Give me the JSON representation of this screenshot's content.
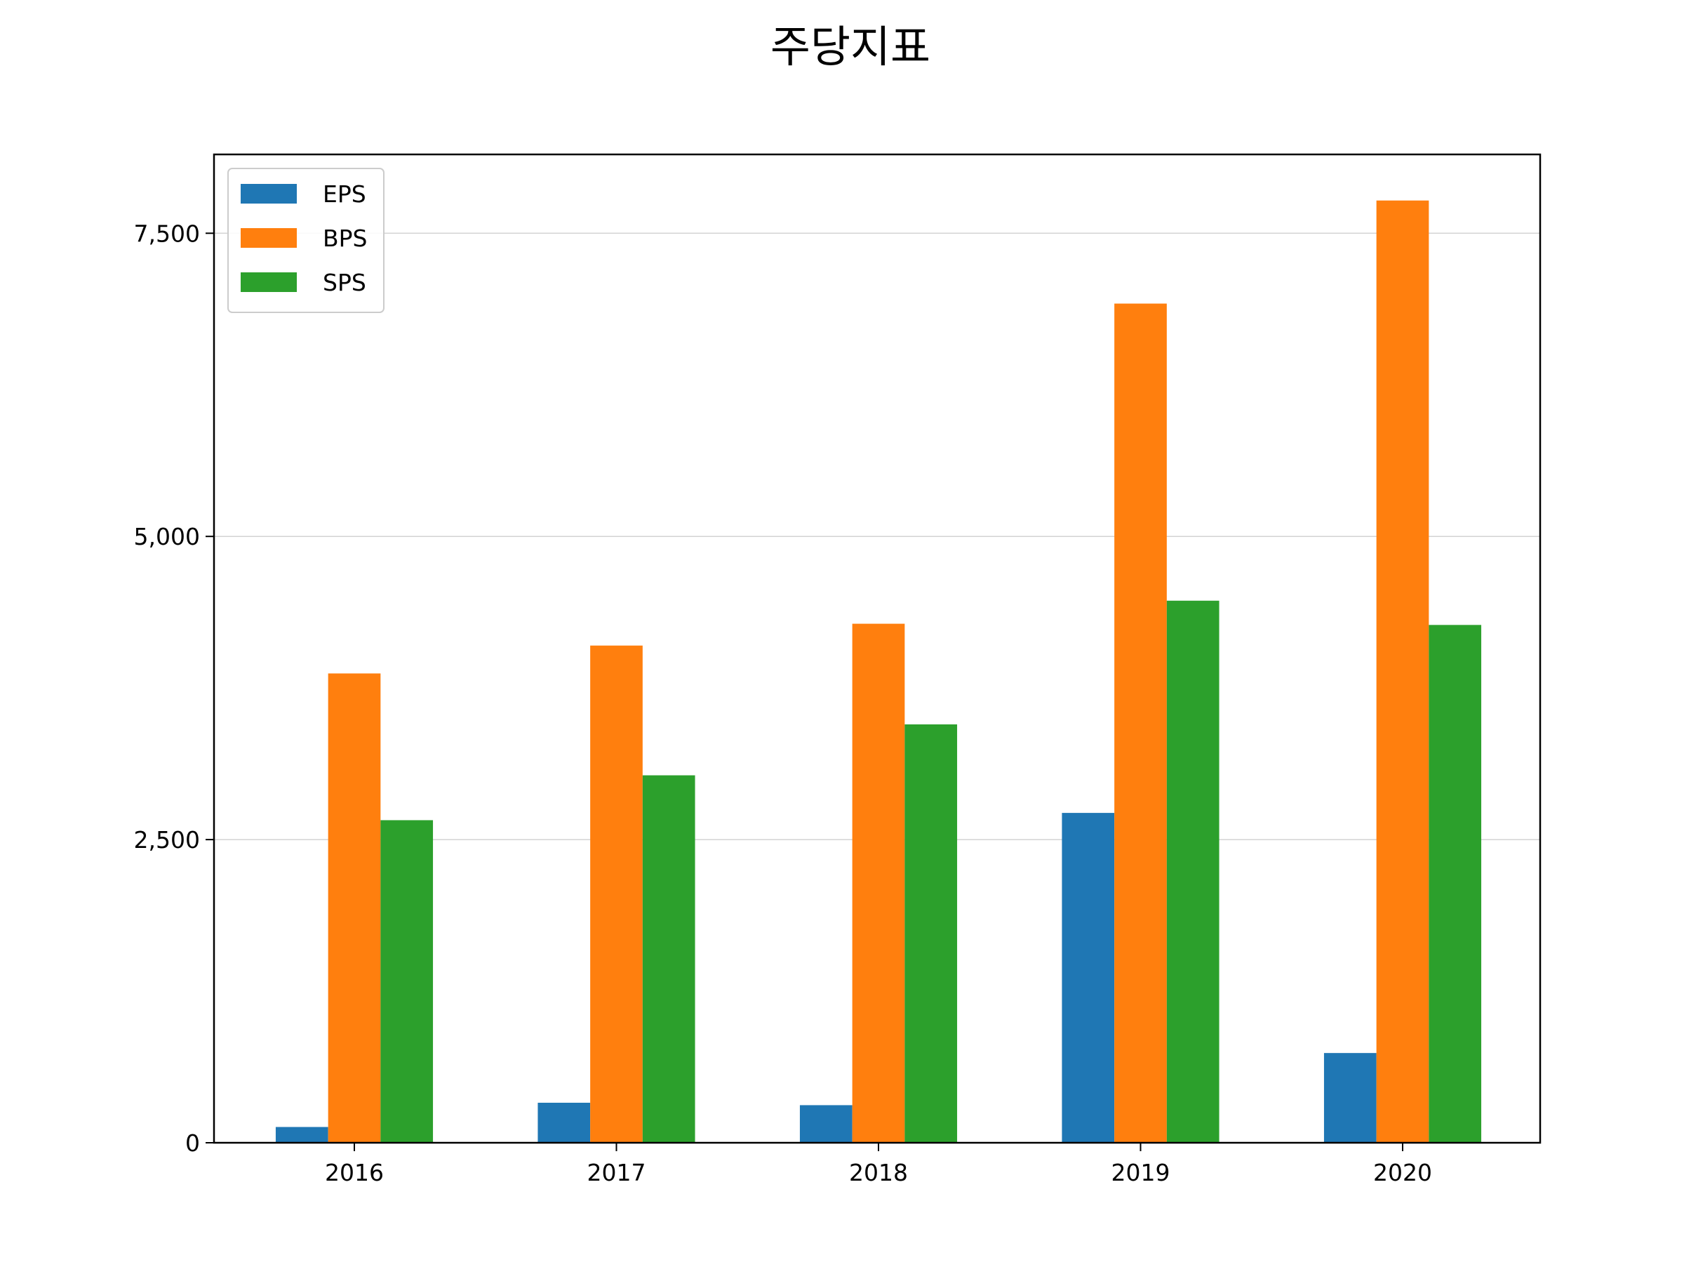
{
  "chart_data": {
    "type": "bar",
    "title": "주당지표",
    "categories": [
      "2016",
      "2017",
      "2018",
      "2019",
      "2020"
    ],
    "series": [
      {
        "name": "EPS",
        "color": "#1f77b4",
        "values": [
          130,
          330,
          310,
          2720,
          740
        ]
      },
      {
        "name": "BPS",
        "color": "#ff7f0e",
        "values": [
          3870,
          4100,
          4280,
          6920,
          7770
        ]
      },
      {
        "name": "SPS",
        "color": "#2ca02c",
        "values": [
          2660,
          3030,
          3450,
          4470,
          4270
        ]
      }
    ],
    "ylim": [
      0,
      8150
    ],
    "yticks": [
      0,
      2500,
      5000,
      7500
    ],
    "ytick_labels": [
      "0",
      "2,500",
      "5,000",
      "7,500"
    ],
    "grid": "horizontal",
    "legend_position": "top-left"
  }
}
